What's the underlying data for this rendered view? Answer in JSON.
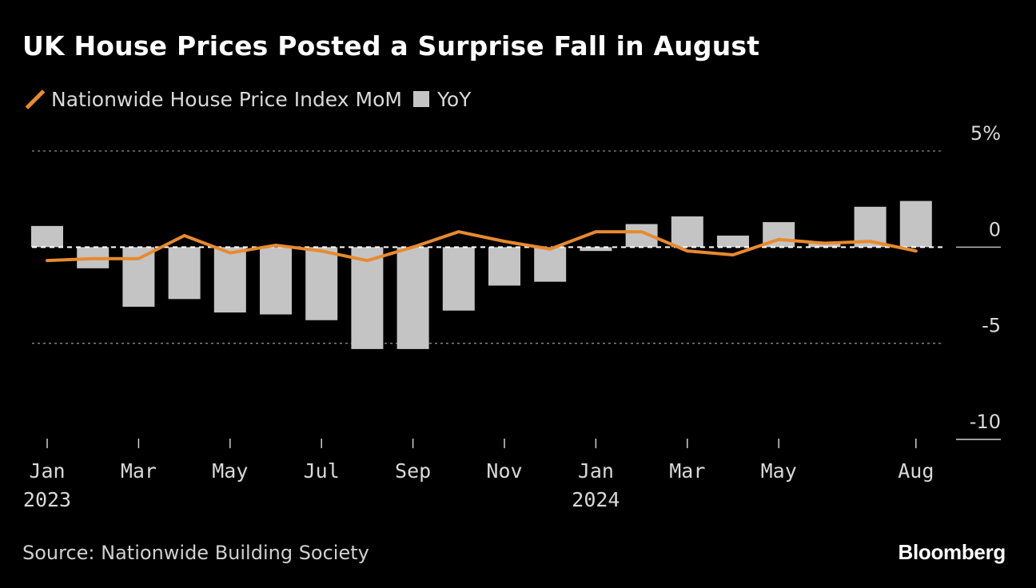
{
  "title": "UK House Prices Posted a Surprise Fall in August",
  "legend": {
    "line_label": "Nationwide House Price Index MoM",
    "bar_label": "YoY"
  },
  "source": "Source: Nationwide Building Society",
  "brand": "Bloomberg",
  "colors": {
    "background": "#000000",
    "line": "#e88a2e",
    "bars": "#c4c4c4",
    "grid": "#8a8a8a",
    "text": "#d9d9d9"
  },
  "chart_data": {
    "type": "bar",
    "title": "UK House Prices Posted a Surprise Fall in August",
    "xlabel": "",
    "ylabel": "",
    "ylim": [
      -10,
      5
    ],
    "ytick_labels": [
      "5%",
      "0",
      "-5",
      "-10"
    ],
    "ytick_values": [
      5,
      0,
      -5,
      -10
    ],
    "categories": [
      "2023-01",
      "2023-02",
      "2023-03",
      "2023-04",
      "2023-05",
      "2023-06",
      "2023-07",
      "2023-08",
      "2023-09",
      "2023-10",
      "2023-11",
      "2023-12",
      "2024-01",
      "2024-02",
      "2024-03",
      "2024-04",
      "2024-05",
      "2024-06",
      "2024-07",
      "2024-08"
    ],
    "xtick_labels": [
      {
        "index": 0,
        "month": "Jan",
        "year": "2023"
      },
      {
        "index": 2,
        "month": "Mar",
        "year": ""
      },
      {
        "index": 4,
        "month": "May",
        "year": ""
      },
      {
        "index": 6,
        "month": "Jul",
        "year": ""
      },
      {
        "index": 8,
        "month": "Sep",
        "year": ""
      },
      {
        "index": 10,
        "month": "Nov",
        "year": ""
      },
      {
        "index": 12,
        "month": "Jan",
        "year": "2024"
      },
      {
        "index": 14,
        "month": "Mar",
        "year": ""
      },
      {
        "index": 16,
        "month": "May",
        "year": ""
      },
      {
        "index": 19,
        "month": "Aug",
        "year": ""
      }
    ],
    "series": [
      {
        "name": "YoY",
        "kind": "bar",
        "values": [
          1.1,
          -1.1,
          -3.1,
          -2.7,
          -3.4,
          -3.5,
          -3.8,
          -5.3,
          -5.3,
          -3.3,
          -2.0,
          -1.8,
          -0.2,
          1.2,
          1.6,
          0.6,
          1.3,
          0.2,
          2.1,
          2.4
        ]
      },
      {
        "name": "Nationwide House Price Index MoM",
        "kind": "line",
        "values": [
          -0.7,
          -0.6,
          -0.6,
          0.6,
          -0.3,
          0.1,
          -0.2,
          -0.7,
          0.0,
          0.8,
          0.3,
          -0.1,
          0.8,
          0.8,
          -0.2,
          -0.4,
          0.4,
          0.2,
          0.3,
          -0.2
        ]
      }
    ]
  }
}
